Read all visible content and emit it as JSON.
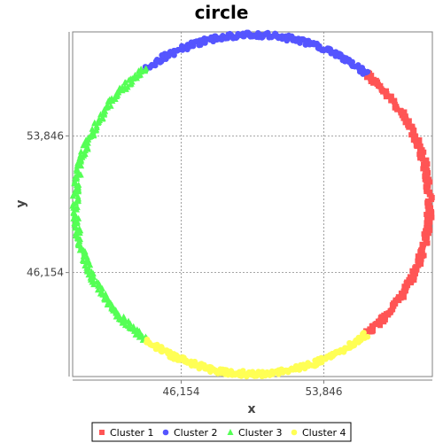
{
  "chart_data": {
    "type": "scatter",
    "title": "circle",
    "xlabel": "x",
    "ylabel": "y",
    "xlim": [
      40300,
      59700
    ],
    "ylim": [
      40300,
      59700
    ],
    "x_ticks": [
      {
        "value": 46154,
        "label": "46,154"
      },
      {
        "value": 53846,
        "label": "53,846"
      }
    ],
    "y_ticks": [
      {
        "value": 46154,
        "label": "46,154"
      },
      {
        "value": 53846,
        "label": "53,846"
      }
    ],
    "grid": true,
    "legend_position": "bottom",
    "circle": {
      "center_x": 50000,
      "center_y": 50000,
      "radius": 9550
    },
    "series": [
      {
        "name": "Cluster 1",
        "marker": "square",
        "color": "#ff5555",
        "angle_range_deg": [
          -50,
          50
        ]
      },
      {
        "name": "Cluster 2",
        "marker": "circle",
        "color": "#5555ff",
        "angle_range_deg": [
          50,
          127
        ]
      },
      {
        "name": "Cluster 3",
        "marker": "triangle",
        "color": "#55ff55",
        "angle_range_deg": [
          127,
          233
        ]
      },
      {
        "name": "Cluster 4",
        "marker": "circle",
        "color": "#ffff55",
        "angle_range_deg": [
          233,
          310
        ]
      }
    ]
  }
}
